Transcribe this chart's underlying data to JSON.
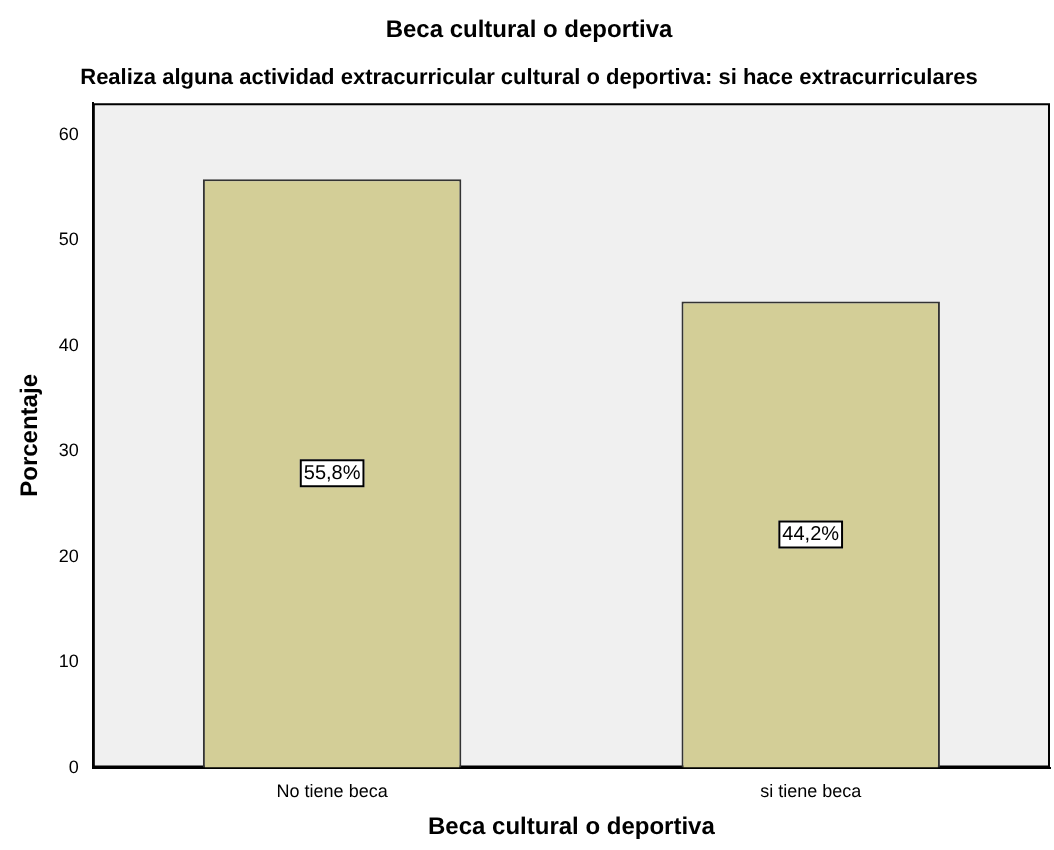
{
  "chart_data": {
    "type": "bar",
    "title": "Beca cultural o deportiva",
    "subtitle": "Realiza alguna actividad extracurricular cultural o deportiva: si hace extracurriculares",
    "xlabel": "Beca cultural o deportiva",
    "ylabel": "Porcentaje",
    "categories": [
      "No tiene beca",
      "si tiene beca"
    ],
    "values": [
      55.8,
      44.2
    ],
    "value_labels": [
      "55,8%",
      "44,2%"
    ],
    "color": "#d3ce97",
    "ylim": [
      0,
      63
    ],
    "yticks": [
      0,
      10,
      20,
      30,
      40,
      50,
      60
    ],
    "grid": false,
    "legend": false
  }
}
